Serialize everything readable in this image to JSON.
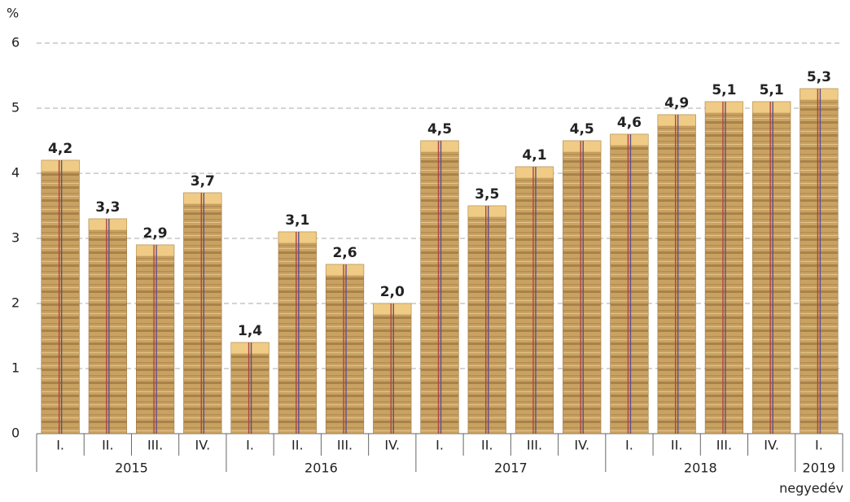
{
  "chart_data": {
    "type": "bar",
    "y_unit_label": "%",
    "x_axis_label": "negyedév",
    "categories": [
      "I.",
      "II.",
      "III.",
      "IV.",
      "I.",
      "II.",
      "III.",
      "IV.",
      "I.",
      "II.",
      "III.",
      "IV.",
      "I.",
      "II.",
      "III.",
      "IV.",
      "I."
    ],
    "groups": [
      "2015",
      "2016",
      "2017",
      "2018",
      "2019"
    ],
    "values": [
      4.2,
      3.3,
      2.9,
      3.7,
      1.4,
      3.1,
      2.6,
      2.0,
      4.5,
      3.5,
      4.1,
      4.5,
      4.6,
      4.9,
      5.1,
      5.1,
      5.3
    ],
    "value_labels": [
      "4,2",
      "3,3",
      "2,9",
      "3,7",
      "1,4",
      "3,1",
      "2,6",
      "2,0",
      "4,5",
      "3,5",
      "4,1",
      "4,5",
      "4,6",
      "4,9",
      "5,1",
      "5,1",
      "5,3"
    ],
    "color": "#c9a262",
    "ylim": [
      0,
      6
    ],
    "yticks": [
      0,
      1,
      2,
      3,
      4,
      5,
      6
    ],
    "grid": true
  }
}
